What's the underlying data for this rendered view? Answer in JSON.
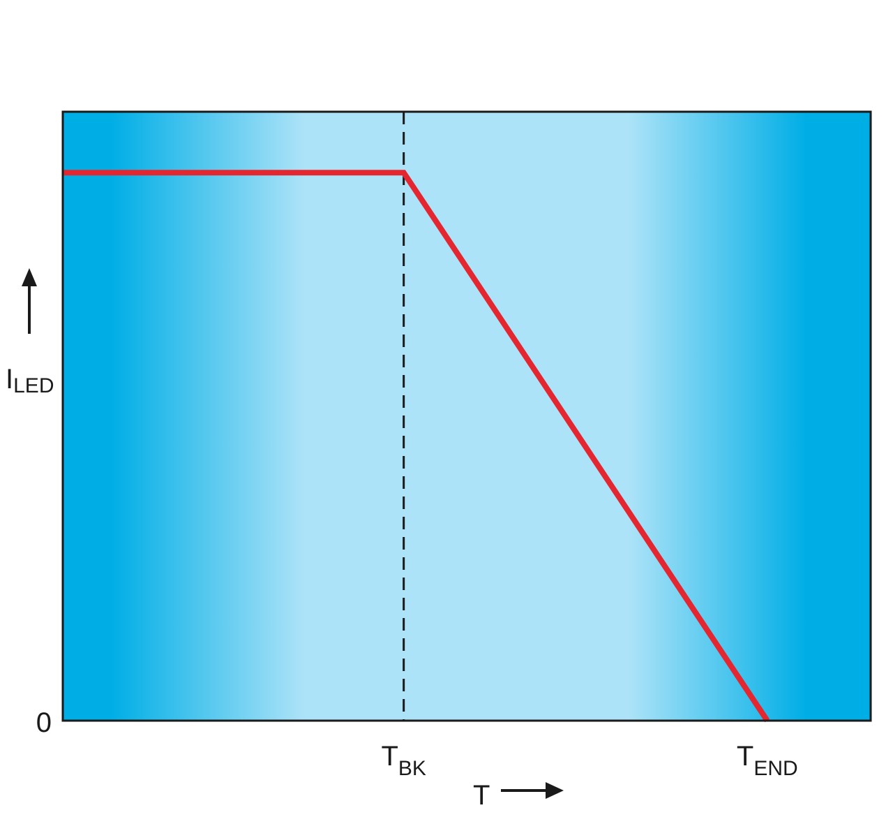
{
  "chart_data": {
    "type": "line",
    "title": "",
    "xlabel": "T",
    "ylabel": {
      "main": "I",
      "sub": "LED"
    },
    "y_ticks": [
      {
        "value": 0,
        "label": "0"
      }
    ],
    "x_ticks": [
      {
        "value": 0.422,
        "main": "T",
        "sub": "BK"
      },
      {
        "value": 0.872,
        "main": "T",
        "sub": "END"
      }
    ],
    "xlim": [
      0,
      1
    ],
    "ylim": [
      0,
      1
    ],
    "series": [
      {
        "color": "#e3262f",
        "points": [
          [
            0,
            0.9
          ],
          [
            0.422,
            0.9
          ],
          [
            0.872,
            0
          ]
        ]
      }
    ],
    "reference_lines": [
      {
        "axis": "x",
        "value": 0.422,
        "style": "dashed",
        "color": "#1a1a1a"
      }
    ],
    "grid": false,
    "legend": "none",
    "background": {
      "edge_color": "#00aee6",
      "center_color": "#ade3f8"
    },
    "frame_color": "#1a1a1a"
  }
}
